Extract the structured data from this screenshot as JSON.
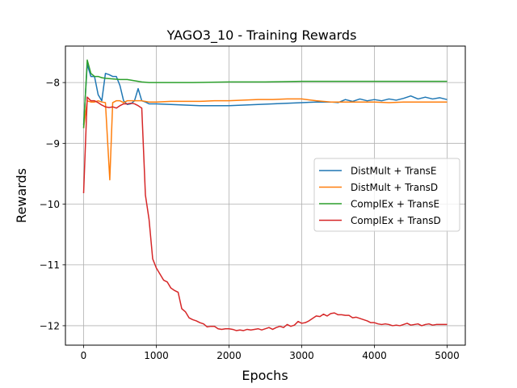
{
  "chart_data": {
    "type": "line",
    "title": "YAGO3_10 - Training Rewards",
    "xlabel": "Epochs",
    "ylabel": "Rewards",
    "xlim": [
      -250,
      5250
    ],
    "ylim": [
      -12.32,
      -7.4
    ],
    "xticks": [
      0,
      1000,
      2000,
      3000,
      4000,
      5000
    ],
    "xtick_labels": [
      "0",
      "1000",
      "2000",
      "3000",
      "4000",
      "5000"
    ],
    "yticks": [
      -12,
      -11,
      -10,
      -9,
      -8
    ],
    "ytick_labels": [
      "−12",
      "−11",
      "−10",
      "−9",
      "−8"
    ],
    "grid": true,
    "legend_position": "center-right",
    "series": [
      {
        "name": "DistMult + TransE",
        "color": "#1f77b4",
        "points": [
          [
            0,
            -8.7
          ],
          [
            50,
            -7.7
          ],
          [
            100,
            -7.9
          ],
          [
            150,
            -7.9
          ],
          [
            200,
            -8.2
          ],
          [
            250,
            -8.3
          ],
          [
            300,
            -7.85
          ],
          [
            350,
            -7.87
          ],
          [
            400,
            -7.9
          ],
          [
            450,
            -7.9
          ],
          [
            500,
            -8.05
          ],
          [
            550,
            -8.3
          ],
          [
            600,
            -8.36
          ],
          [
            650,
            -8.35
          ],
          [
            700,
            -8.3
          ],
          [
            750,
            -8.1
          ],
          [
            800,
            -8.3
          ],
          [
            850,
            -8.32
          ],
          [
            900,
            -8.35
          ],
          [
            1000,
            -8.35
          ],
          [
            1200,
            -8.36
          ],
          [
            1400,
            -8.37
          ],
          [
            1600,
            -8.38
          ],
          [
            1800,
            -8.38
          ],
          [
            2000,
            -8.38
          ],
          [
            2200,
            -8.37
          ],
          [
            2400,
            -8.36
          ],
          [
            2600,
            -8.35
          ],
          [
            2800,
            -8.34
          ],
          [
            3000,
            -8.33
          ],
          [
            3200,
            -8.32
          ],
          [
            3400,
            -8.32
          ],
          [
            3500,
            -8.33
          ],
          [
            3600,
            -8.28
          ],
          [
            3700,
            -8.31
          ],
          [
            3800,
            -8.27
          ],
          [
            3900,
            -8.3
          ],
          [
            4000,
            -8.28
          ],
          [
            4100,
            -8.3
          ],
          [
            4200,
            -8.27
          ],
          [
            4300,
            -8.29
          ],
          [
            4400,
            -8.26
          ],
          [
            4500,
            -8.22
          ],
          [
            4600,
            -8.27
          ],
          [
            4700,
            -8.24
          ],
          [
            4800,
            -8.27
          ],
          [
            4900,
            -8.25
          ],
          [
            5000,
            -8.28
          ]
        ]
      },
      {
        "name": "DistMult + TransD",
        "color": "#ff7f0e",
        "points": [
          [
            0,
            -8.75
          ],
          [
            50,
            -8.3
          ],
          [
            100,
            -8.32
          ],
          [
            150,
            -8.32
          ],
          [
            200,
            -8.3
          ],
          [
            250,
            -8.32
          ],
          [
            300,
            -8.33
          ],
          [
            360,
            -9.6
          ],
          [
            400,
            -8.33
          ],
          [
            450,
            -8.3
          ],
          [
            500,
            -8.3
          ],
          [
            550,
            -8.33
          ],
          [
            600,
            -8.3
          ],
          [
            700,
            -8.3
          ],
          [
            800,
            -8.3
          ],
          [
            900,
            -8.32
          ],
          [
            1000,
            -8.32
          ],
          [
            1200,
            -8.31
          ],
          [
            1400,
            -8.31
          ],
          [
            1600,
            -8.31
          ],
          [
            1800,
            -8.3
          ],
          [
            2000,
            -8.3
          ],
          [
            2200,
            -8.29
          ],
          [
            2400,
            -8.28
          ],
          [
            2600,
            -8.28
          ],
          [
            2800,
            -8.27
          ],
          [
            3000,
            -8.27
          ],
          [
            3200,
            -8.3
          ],
          [
            3400,
            -8.32
          ],
          [
            3600,
            -8.32
          ],
          [
            3800,
            -8.32
          ],
          [
            4000,
            -8.32
          ],
          [
            4200,
            -8.33
          ],
          [
            4400,
            -8.32
          ],
          [
            4600,
            -8.32
          ],
          [
            4800,
            -8.32
          ],
          [
            5000,
            -8.32
          ]
        ]
      },
      {
        "name": "ComplEx + TransE",
        "color": "#2ca02c",
        "points": [
          [
            0,
            -8.75
          ],
          [
            50,
            -7.63
          ],
          [
            100,
            -7.85
          ],
          [
            150,
            -7.9
          ],
          [
            200,
            -7.9
          ],
          [
            250,
            -7.92
          ],
          [
            300,
            -7.93
          ],
          [
            400,
            -7.94
          ],
          [
            500,
            -7.95
          ],
          [
            600,
            -7.95
          ],
          [
            700,
            -7.97
          ],
          [
            800,
            -7.99
          ],
          [
            900,
            -8.0
          ],
          [
            1000,
            -8.0
          ],
          [
            1500,
            -8.0
          ],
          [
            2000,
            -7.99
          ],
          [
            2500,
            -7.99
          ],
          [
            3000,
            -7.98
          ],
          [
            3500,
            -7.98
          ],
          [
            4000,
            -7.98
          ],
          [
            4500,
            -7.98
          ],
          [
            5000,
            -7.98
          ]
        ]
      },
      {
        "name": "ComplEx + TransD",
        "color": "#d62728",
        "points": [
          [
            0,
            -9.82
          ],
          [
            50,
            -8.24
          ],
          [
            100,
            -8.3
          ],
          [
            150,
            -8.3
          ],
          [
            200,
            -8.33
          ],
          [
            250,
            -8.37
          ],
          [
            300,
            -8.4
          ],
          [
            350,
            -8.41
          ],
          [
            400,
            -8.4
          ],
          [
            450,
            -8.42
          ],
          [
            500,
            -8.38
          ],
          [
            550,
            -8.35
          ],
          [
            600,
            -8.35
          ],
          [
            650,
            -8.34
          ],
          [
            700,
            -8.35
          ],
          [
            750,
            -8.38
          ],
          [
            800,
            -8.42
          ],
          [
            850,
            -9.85
          ],
          [
            900,
            -10.25
          ],
          [
            950,
            -10.9
          ],
          [
            1000,
            -11.05
          ],
          [
            1050,
            -11.15
          ],
          [
            1100,
            -11.25
          ],
          [
            1150,
            -11.28
          ],
          [
            1200,
            -11.38
          ],
          [
            1250,
            -11.42
          ],
          [
            1300,
            -11.45
          ],
          [
            1350,
            -11.72
          ],
          [
            1400,
            -11.77
          ],
          [
            1450,
            -11.87
          ],
          [
            1500,
            -11.9
          ],
          [
            1550,
            -11.92
          ],
          [
            1600,
            -11.95
          ],
          [
            1650,
            -11.97
          ],
          [
            1700,
            -12.02
          ],
          [
            1750,
            -12.01
          ],
          [
            1800,
            -12.01
          ],
          [
            1850,
            -12.05
          ],
          [
            1900,
            -12.06
          ],
          [
            1950,
            -12.05
          ],
          [
            2000,
            -12.05
          ],
          [
            2050,
            -12.06
          ],
          [
            2100,
            -12.08
          ],
          [
            2150,
            -12.07
          ],
          [
            2200,
            -12.08
          ],
          [
            2250,
            -12.06
          ],
          [
            2300,
            -12.07
          ],
          [
            2350,
            -12.06
          ],
          [
            2400,
            -12.05
          ],
          [
            2450,
            -12.07
          ],
          [
            2500,
            -12.05
          ],
          [
            2550,
            -12.03
          ],
          [
            2600,
            -12.06
          ],
          [
            2650,
            -12.03
          ],
          [
            2700,
            -12.01
          ],
          [
            2750,
            -12.03
          ],
          [
            2800,
            -11.98
          ],
          [
            2850,
            -12.01
          ],
          [
            2900,
            -11.99
          ],
          [
            2950,
            -11.93
          ],
          [
            3000,
            -11.96
          ],
          [
            3050,
            -11.95
          ],
          [
            3100,
            -11.92
          ],
          [
            3150,
            -11.88
          ],
          [
            3200,
            -11.84
          ],
          [
            3250,
            -11.85
          ],
          [
            3300,
            -11.81
          ],
          [
            3350,
            -11.84
          ],
          [
            3400,
            -11.8
          ],
          [
            3450,
            -11.79
          ],
          [
            3500,
            -11.82
          ],
          [
            3550,
            -11.82
          ],
          [
            3600,
            -11.83
          ],
          [
            3650,
            -11.83
          ],
          [
            3700,
            -11.87
          ],
          [
            3750,
            -11.86
          ],
          [
            3800,
            -11.88
          ],
          [
            3850,
            -11.9
          ],
          [
            3900,
            -11.92
          ],
          [
            3950,
            -11.95
          ],
          [
            4000,
            -11.95
          ],
          [
            4050,
            -11.97
          ],
          [
            4100,
            -11.98
          ],
          [
            4150,
            -11.97
          ],
          [
            4200,
            -11.98
          ],
          [
            4250,
            -12.0
          ],
          [
            4300,
            -11.99
          ],
          [
            4350,
            -12.0
          ],
          [
            4400,
            -11.98
          ],
          [
            4450,
            -11.96
          ],
          [
            4500,
            -11.99
          ],
          [
            4550,
            -11.98
          ],
          [
            4600,
            -11.97
          ],
          [
            4650,
            -12.0
          ],
          [
            4700,
            -11.98
          ],
          [
            4750,
            -11.97
          ],
          [
            4800,
            -11.99
          ],
          [
            4850,
            -11.98
          ],
          [
            4900,
            -11.98
          ],
          [
            4950,
            -11.98
          ],
          [
            5000,
            -11.98
          ]
        ]
      }
    ]
  }
}
